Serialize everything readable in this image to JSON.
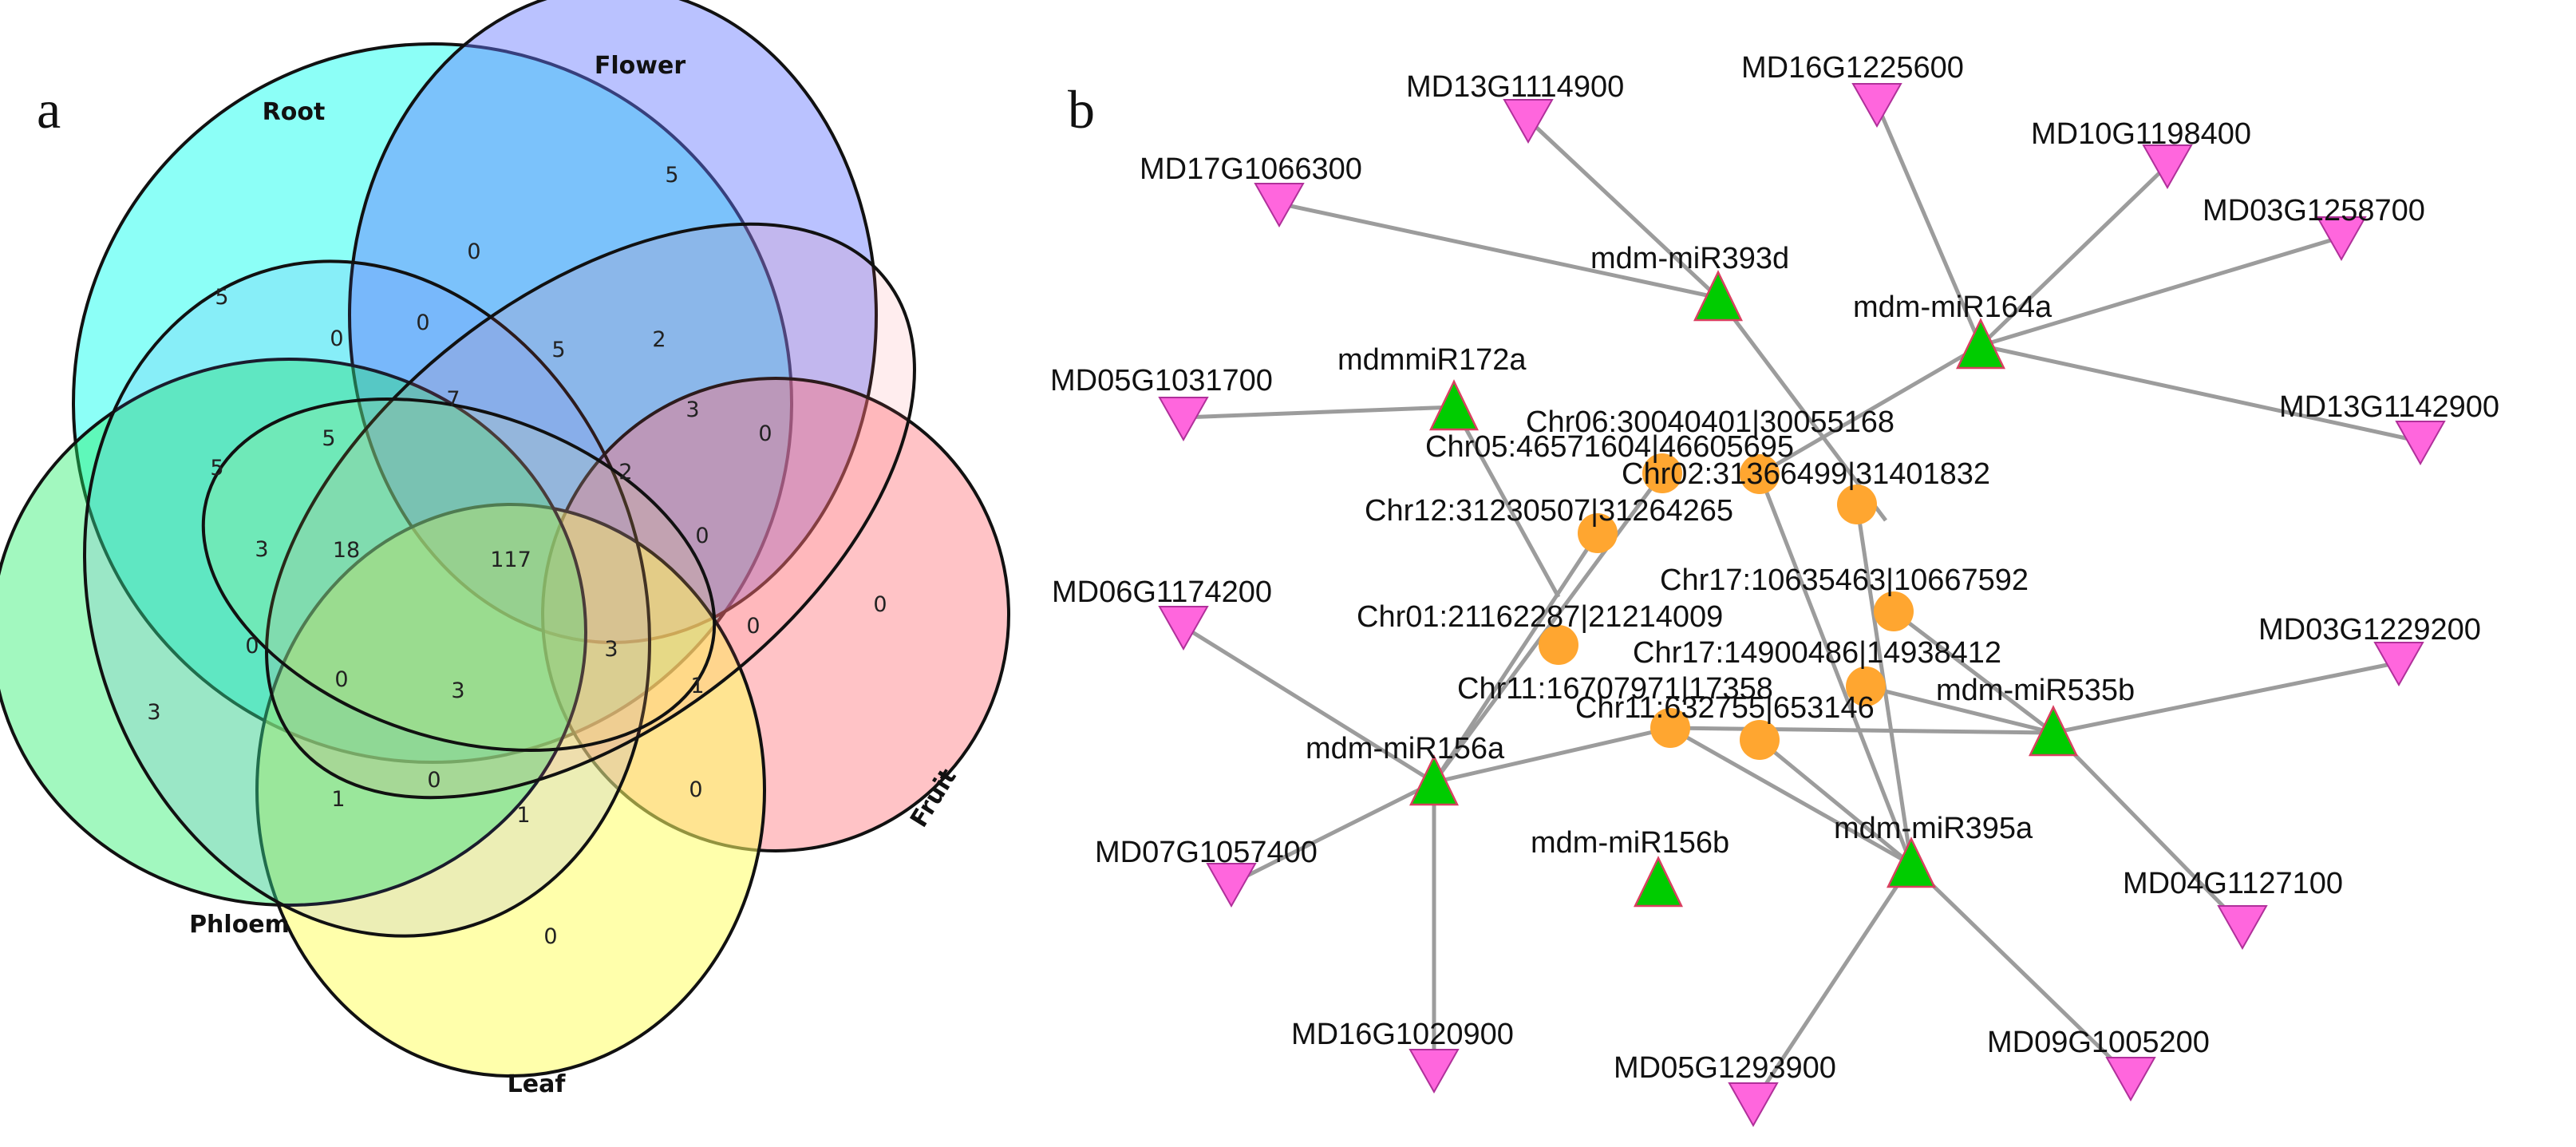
{
  "panels": {
    "a": "a",
    "b": "b"
  },
  "venn": {
    "sets": [
      {
        "name": "Root",
        "color": "#00ffee"
      },
      {
        "name": "Flower",
        "color": "#6677ff"
      },
      {
        "name": "Fruit",
        "color": "#ff6f77"
      },
      {
        "name": "Leaf",
        "color": "#ffff66"
      },
      {
        "name": "Phloem",
        "color": "#22ee66"
      }
    ],
    "counts": {
      "root_only": "5",
      "flower_only": "5",
      "fruit_only": "0",
      "leaf_only": "0",
      "phloem_only": "3",
      "c_0_a": "0",
      "c_0_b": "0",
      "c_0_c": "0",
      "c_0_d": "0",
      "c_0_e": "0",
      "c_0_f": "0",
      "c_0_g": "0",
      "c_0_h": "0",
      "c_0_i": "0",
      "c_0_j": "0",
      "c_5_a": "5",
      "c_5_b": "5",
      "c_5_c": "5",
      "c_2_a": "2",
      "c_2_b": "2",
      "c_3_a": "3",
      "c_3_b": "3",
      "c_3_c": "3",
      "c_3_d": "3",
      "c_1_a": "1",
      "c_1_b": "1",
      "c_1_c": "1",
      "c_7": "7",
      "c_18": "18",
      "c_117": "117"
    }
  },
  "network": {
    "mirnas": {
      "m393d": "mdm-miR393d",
      "m164a": "mdm-miR164a",
      "m172a": "mdmmiR172a",
      "m156a": "mdm-miR156a",
      "m156b": "mdm-miR156b",
      "m395a": "mdm-miR395a",
      "m535b": "mdm-miR535b"
    },
    "genes": {
      "g1": "MD13G1114900",
      "g2": "MD16G1225600",
      "g3": "MD10G1198400",
      "g4": "MD17G1066300",
      "g5": "MD03G1258700",
      "g6": "MD05G1031700",
      "g7": "MD13G1142900",
      "g8": "MD06G1174200",
      "g9": "MD03G1229200",
      "g10": "MD07G1057400",
      "g11": "MD04G1127100",
      "g12": "MD16G1020900",
      "g13": "MD05G1293900",
      "g14": "MD09G1005200"
    },
    "circs": {
      "c1": "Chr06:30040401|30055168",
      "c2": "Chr05:46571604|46605695",
      "c3": "Chr02:31366499|31401832",
      "c4": "Chr12:31230507|31264265",
      "c5": "Chr17:10635463|10667592",
      "c6": "Chr01:21162287|21214009",
      "c7": "Chr17:14900486|14938412",
      "c8": "Chr11:16707971|17358",
      "c9": "Chr11:632755|653146"
    },
    "colors": {
      "mirna": "#00cc00",
      "gene": "#ff66dd",
      "circ": "#ffa630",
      "edge": "#9c9c9c"
    }
  }
}
